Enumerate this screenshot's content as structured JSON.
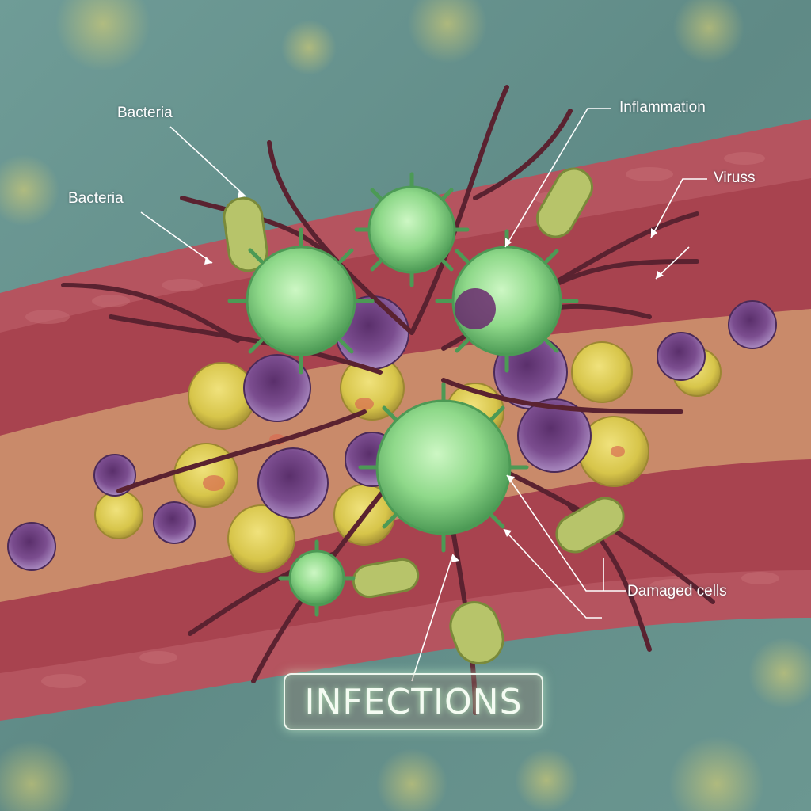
{
  "title": "INFECTIONS",
  "labels": {
    "bacteria_top": "Bacteria",
    "bacteria_left": "Bacteria",
    "inflammation": "Inflammation",
    "viruss": "Viruss",
    "damaged_cells": "Damaged cells"
  },
  "colors": {
    "background": "#5f8a86",
    "vessel_wall": "#b5545f",
    "vessel_interior": "#c98a6a",
    "virus": "#8fd98a",
    "bacterium": "#b7c46a",
    "immune_cell": "#7b4d8f",
    "yellow_cell": "#d7c54a",
    "fibers": "#5a2230",
    "leader_lines": "#ffffff"
  },
  "icons": [
    "virus-icon",
    "bacterium-icon",
    "immune-cell-icon",
    "blood-vessel"
  ]
}
